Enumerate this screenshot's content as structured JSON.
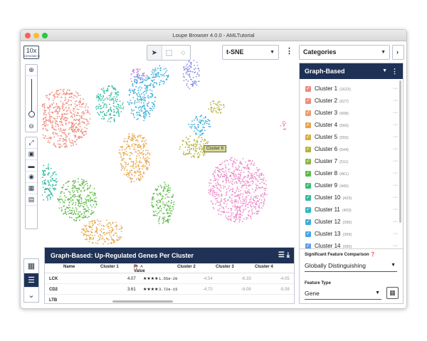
{
  "window": {
    "title": "Loupe Browser 4.0.0 - AMLTutorial"
  },
  "logo": {
    "text": "10x",
    "sub": "GENOMICS"
  },
  "projection": {
    "value": "t-SNE"
  },
  "categories_dropdown": {
    "value": "Categories"
  },
  "cluster_panel": {
    "title": "Graph-Based",
    "clusters": [
      {
        "label": "Cluster 1",
        "count": "(1623)",
        "color": "#ef8a7c"
      },
      {
        "label": "Cluster 2",
        "count": "(627)",
        "color": "#ef8a7c"
      },
      {
        "label": "Cluster 3",
        "count": "(608)",
        "color": "#f09a6e"
      },
      {
        "label": "Cluster 4",
        "count": "(566)",
        "color": "#e6a64a"
      },
      {
        "label": "Cluster 5",
        "count": "(555)",
        "color": "#dcae3a"
      },
      {
        "label": "Cluster 6",
        "count": "(544)",
        "color": "#b6b43a"
      },
      {
        "label": "Cluster 7",
        "count": "(511)",
        "color": "#8db83f"
      },
      {
        "label": "Cluster 8",
        "count": "(461)",
        "color": "#5fba4a"
      },
      {
        "label": "Cluster 9",
        "count": "(445)",
        "color": "#3bbb7a"
      },
      {
        "label": "Cluster 10",
        "count": "(423)",
        "color": "#34bba0"
      },
      {
        "label": "Cluster 11",
        "count": "(403)",
        "color": "#30b8c0"
      },
      {
        "label": "Cluster 12",
        "count": "(390)",
        "color": "#3aaed8"
      },
      {
        "label": "Cluster 13",
        "count": "(369)",
        "color": "#4aa5e6"
      },
      {
        "label": "Cluster 14",
        "count": "(360)",
        "color": "#5b9ced"
      }
    ]
  },
  "comparison": {
    "label": "Significant Feature Comparison",
    "value": "Globally Distinguishing",
    "feature_type_label": "Feature Type",
    "feature_type_value": "Gene"
  },
  "hover_tag": "Cluster 6",
  "table": {
    "title": "Graph-Based: Up-Regulated Genes Per Cluster",
    "columns": [
      "Name",
      "Cluster 1",
      "P-Value",
      "Cluster 2",
      "Cluster 3",
      "Cluster 4"
    ],
    "rows": [
      {
        "name": "LCK",
        "c1": "4.07",
        "stars": "★★★★",
        "pv": "1.55e-20",
        "c2": "-4.54",
        "c3": "-6.33",
        "c4": "-4.05"
      },
      {
        "name": "CD2",
        "c1": "3.61",
        "stars": "★★★★",
        "pv": "3.72e-15",
        "c2": "-4.70",
        "c3": "-6.08",
        "c4": "-5.08"
      },
      {
        "name": "LTB",
        "c1": "",
        "stars": "",
        "pv": "",
        "c2": "",
        "c3": "",
        "c4": ""
      }
    ]
  },
  "colors": {
    "navy": "#1f3256",
    "scatter_palette": [
      "#ef8a7c",
      "#e6a64a",
      "#b6b43a",
      "#5fba4a",
      "#34bba0",
      "#3aaed8",
      "#8b8fe8",
      "#c88ce8",
      "#ec8ac8",
      "#f08aa8"
    ]
  }
}
